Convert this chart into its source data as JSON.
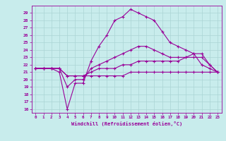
{
  "xlabel": "Windchill (Refroidissement éolien,°C)",
  "background_color": "#c8ecec",
  "grid_color": "#aad4d4",
  "line_color": "#990099",
  "x_ticks": [
    0,
    1,
    2,
    3,
    4,
    5,
    6,
    7,
    8,
    9,
    10,
    11,
    12,
    13,
    14,
    15,
    16,
    17,
    18,
    19,
    20,
    21,
    22,
    23
  ],
  "y_ticks": [
    16,
    17,
    18,
    19,
    20,
    21,
    22,
    23,
    24,
    25,
    26,
    27,
    28,
    29
  ],
  "ylim": [
    15.5,
    30.0
  ],
  "xlim": [
    -0.5,
    23.5
  ],
  "series": [
    [
      21.5,
      21.5,
      21.5,
      21.0,
      16.0,
      19.5,
      19.5,
      22.5,
      24.5,
      26.0,
      28.0,
      28.5,
      29.5,
      29.0,
      28.5,
      28.0,
      26.5,
      25.0,
      24.5,
      24.0,
      23.5,
      22.0,
      21.5,
      21.0
    ],
    [
      21.5,
      21.5,
      21.5,
      21.5,
      19.0,
      20.0,
      20.0,
      21.5,
      22.0,
      22.5,
      23.0,
      23.5,
      24.0,
      24.5,
      24.5,
      24.0,
      23.5,
      23.0,
      23.0,
      23.0,
      23.5,
      23.5,
      22.0,
      21.0
    ],
    [
      21.5,
      21.5,
      21.5,
      21.5,
      20.5,
      20.5,
      20.5,
      21.0,
      21.5,
      21.5,
      21.5,
      22.0,
      22.0,
      22.5,
      22.5,
      22.5,
      22.5,
      22.5,
      22.5,
      23.0,
      23.0,
      23.0,
      22.0,
      21.0
    ],
    [
      21.5,
      21.5,
      21.5,
      21.5,
      20.5,
      20.5,
      20.5,
      20.5,
      20.5,
      20.5,
      20.5,
      20.5,
      21.0,
      21.0,
      21.0,
      21.0,
      21.0,
      21.0,
      21.0,
      21.0,
      21.0,
      21.0,
      21.0,
      21.0
    ]
  ]
}
